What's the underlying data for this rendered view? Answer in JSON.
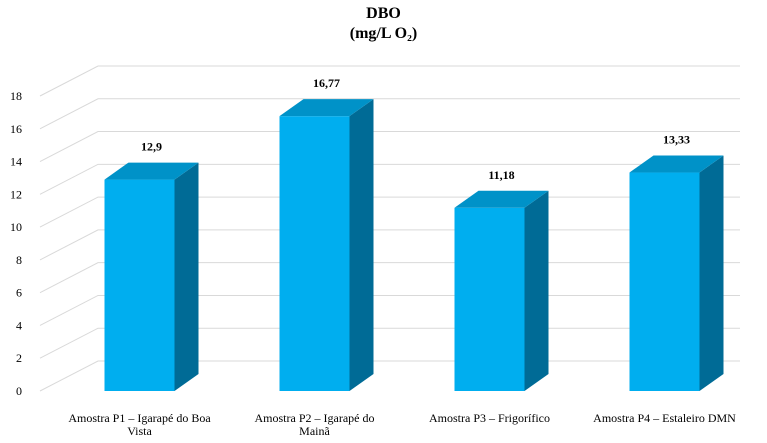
{
  "chart_data": {
    "type": "bar",
    "title": "DBO",
    "subtitle": "(mg/L O₂)",
    "categories": [
      [
        "Amostra P1 –  Igarapé do Boa",
        "Vista"
      ],
      [
        "Amostra P2 –  Igarapé do",
        "Mainã"
      ],
      [
        "Amostra P3 – Frigorífico"
      ],
      [
        "Amostra P4 – Estaleiro DMN"
      ]
    ],
    "values": [
      12.9,
      16.77,
      11.18,
      13.33
    ],
    "data_labels": [
      "12,9",
      "16,77",
      "11,18",
      "13,33"
    ],
    "ylim": [
      0,
      18
    ],
    "yticks": [
      0,
      2,
      4,
      6,
      8,
      10,
      12,
      14,
      16,
      18
    ],
    "grid": true,
    "style": "3d-column",
    "colors": {
      "front": "#00AEEF",
      "top": "#0092C8",
      "side": "#006B96",
      "grid": "#D9D9D9",
      "axis": "#BFBFBF"
    }
  }
}
